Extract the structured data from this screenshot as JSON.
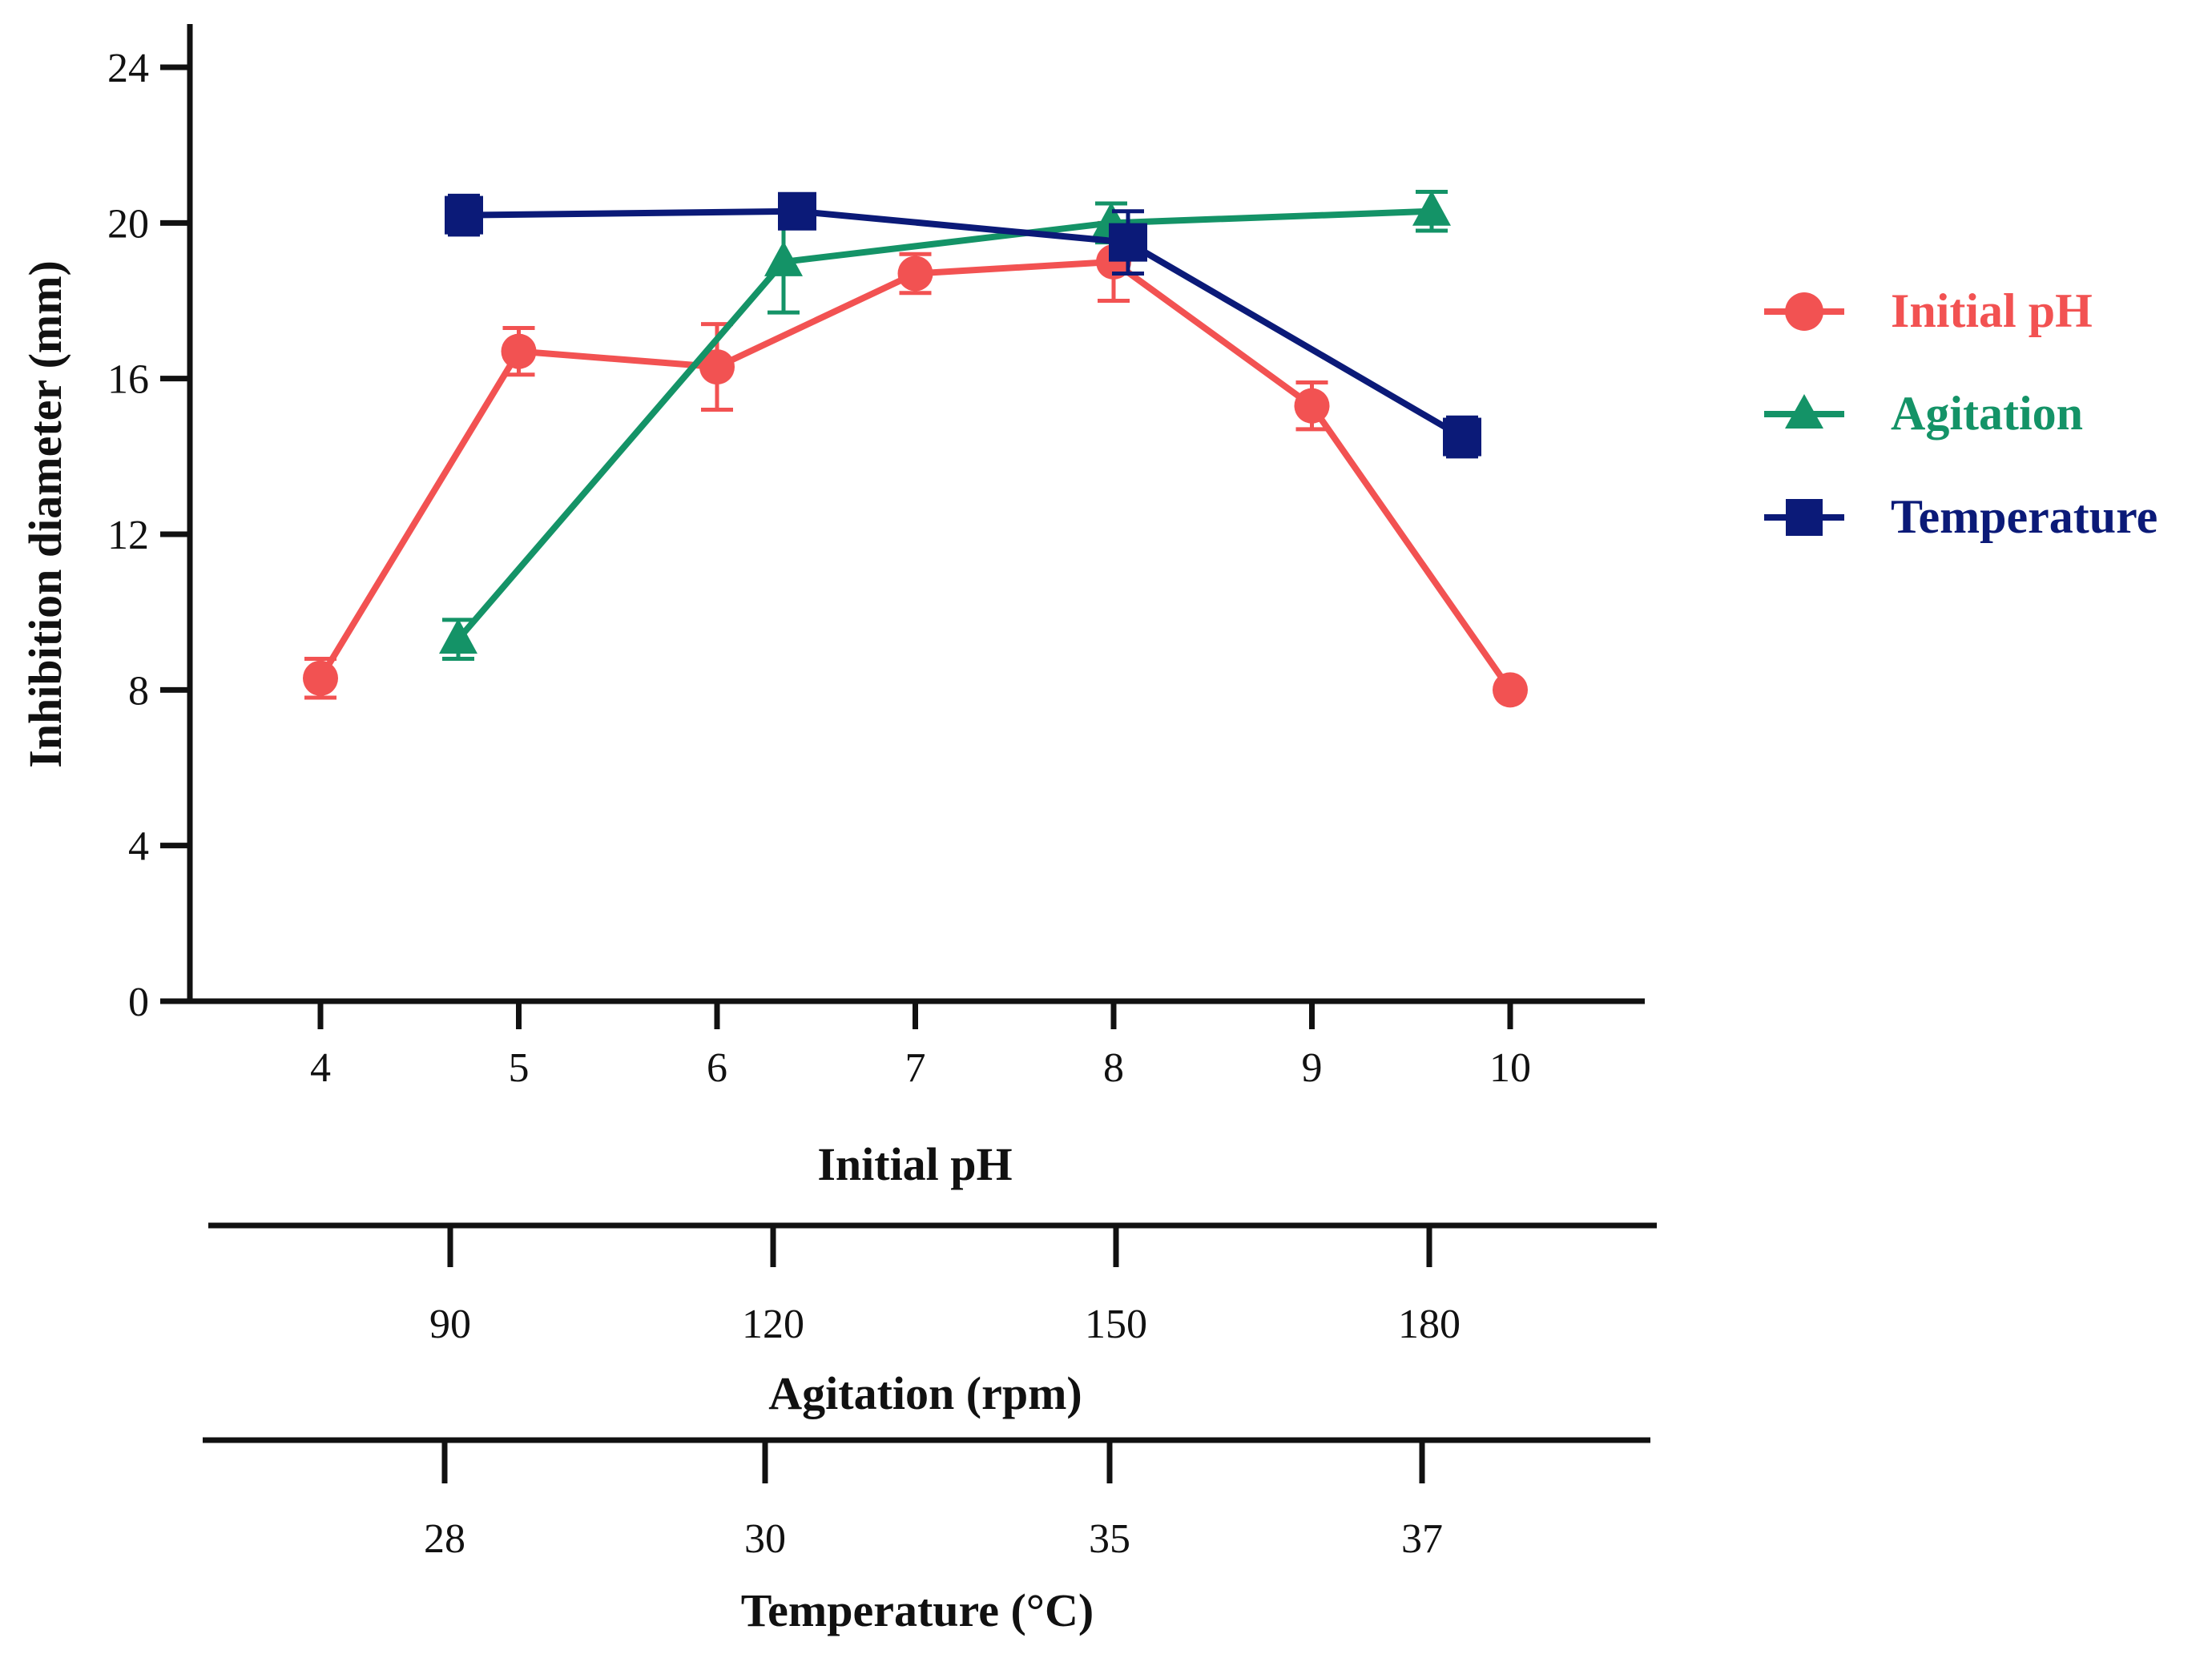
{
  "chart_data": {
    "type": "line",
    "ylabel": "Inhibition diameter (mm)",
    "ylim": [
      0,
      24
    ],
    "yticks": [
      "0",
      "4",
      "8",
      "12",
      "16",
      "20",
      "24"
    ],
    "axes": [
      {
        "id": "ph",
        "title": "Initial pH",
        "ticks": [
          "4",
          "5",
          "6",
          "7",
          "8",
          "9",
          "10"
        ]
      },
      {
        "id": "agitation",
        "title": "Agitation (rpm)",
        "ticks": [
          "90",
          "120",
          "150",
          "180"
        ]
      },
      {
        "id": "temperature",
        "title": "Temperature (°C)",
        "ticks": [
          "28",
          "30",
          "35",
          "37"
        ]
      }
    ],
    "series": [
      {
        "name": "Initial pH",
        "color": "#f25252",
        "marker": "circle",
        "x": [
          4,
          5,
          6,
          7,
          8,
          9,
          10
        ],
        "y": [
          8.3,
          16.7,
          16.3,
          18.7,
          19.0,
          15.3,
          8.0
        ],
        "err": [
          0.5,
          0.6,
          1.1,
          0.5,
          1.0,
          0.6,
          0.0
        ]
      },
      {
        "name": "Agitation",
        "color": "#149367",
        "marker": "triangle",
        "x": [
          90,
          120,
          150,
          180
        ],
        "y": [
          9.3,
          19.0,
          20.0,
          20.3
        ],
        "err": [
          0.5,
          1.3,
          0.5,
          0.5
        ]
      },
      {
        "name": "Temperature",
        "color": "#0b1a78",
        "marker": "square",
        "x": [
          28,
          30,
          35,
          37
        ],
        "y": [
          20.2,
          20.3,
          19.5,
          14.5
        ],
        "err": [
          0.5,
          0.3,
          0.8,
          0.5
        ]
      }
    ],
    "legend_position": "right"
  }
}
